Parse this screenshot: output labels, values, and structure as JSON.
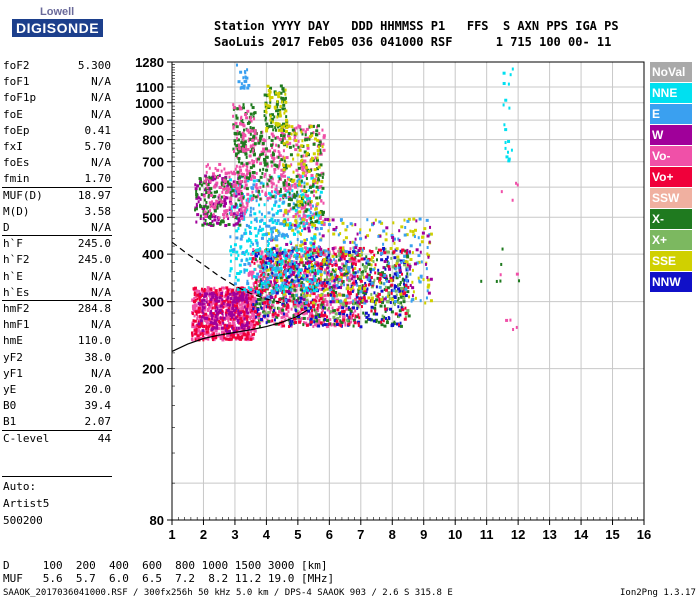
{
  "logo": {
    "top": "Lowell",
    "main": "DIGISONDE"
  },
  "header": {
    "line1": "Station YYYY DAY   DDD HHMMSS P1   FFS  S AXN PPS IGA PS",
    "line2": "SaoLuis 2017 Feb05 036 041000 RSF      1 715 100 00- 11"
  },
  "params": [
    {
      "name": "foF2",
      "value": "5.300"
    },
    {
      "name": "foF1",
      "value": "N/A"
    },
    {
      "name": "foF1p",
      "value": "N/A"
    },
    {
      "name": "foE",
      "value": "N/A"
    },
    {
      "name": "foEp",
      "value": "0.41"
    },
    {
      "name": "fxI",
      "value": "5.70"
    },
    {
      "name": "foEs",
      "value": "N/A"
    },
    {
      "name": "fmin",
      "value": "1.70"
    },
    {
      "name": "MUF(D)",
      "value": "18.97"
    },
    {
      "name": "M(D)",
      "value": "3.58"
    },
    {
      "name": "D",
      "value": "N/A"
    },
    {
      "name": "h`F",
      "value": "245.0"
    },
    {
      "name": "h`F2",
      "value": "245.0"
    },
    {
      "name": "h`E",
      "value": "N/A"
    },
    {
      "name": "h`Es",
      "value": "N/A"
    },
    {
      "name": "hmF2",
      "value": "284.8"
    },
    {
      "name": "hmF1",
      "value": "N/A"
    },
    {
      "name": "hmE",
      "value": "110.0"
    },
    {
      "name": "yF2",
      "value": "38.0"
    },
    {
      "name": "yF1",
      "value": "N/A"
    },
    {
      "name": "yE",
      "value": "20.0"
    },
    {
      "name": "B0",
      "value": "39.4"
    },
    {
      "name": "B1",
      "value": "2.07"
    },
    {
      "name": "C-level",
      "value": "44"
    }
  ],
  "notes": [
    "Auto:",
    "Artist5",
    "500200"
  ],
  "legend": [
    {
      "label": "NoVal",
      "color": "#a9a9a9"
    },
    {
      "label": "NNE",
      "color": "#00e0f0"
    },
    {
      "label": "E",
      "color": "#3aa0f0"
    },
    {
      "label": "W",
      "color": "#a0009a"
    },
    {
      "label": "Vo-",
      "color": "#f050a8"
    },
    {
      "label": "Vo+",
      "color": "#f0003a"
    },
    {
      "label": "SSW",
      "color": "#f0b0a0"
    },
    {
      "label": "X-",
      "color": "#1f7a1f"
    },
    {
      "label": "X+",
      "color": "#7cb860"
    },
    {
      "label": "SSE",
      "color": "#d0d000"
    },
    {
      "label": "NNW",
      "color": "#1010c8"
    }
  ],
  "footer": {
    "d_row": "D     100  200  400  600  800 1000 1500 3000 [km]",
    "muf_row": "MUF   5.6  5.7  6.0  6.5  7.2  8.2 11.2 19.0 [MHz]",
    "info": "SAAOK_2017036041000.RSF / 300fx256h 50 kHz 5.0 km / DPS-4 SAAOK 903 / 2.6 S 315.8 E",
    "version": "Ion2Png 1.3.17"
  },
  "chart_data": {
    "type": "scatter",
    "x_ticks": [
      "1",
      "2",
      "3",
      "4",
      "5",
      "6",
      "7",
      "8",
      "9",
      "10",
      "11",
      "12",
      "13",
      "14",
      "15",
      "16"
    ],
    "y_ticks": [
      "80",
      "200",
      "300",
      "400",
      "500",
      "600",
      "700",
      "800",
      "900",
      "1000",
      "1100",
      "1280"
    ],
    "xlim": [
      1,
      16
    ],
    "y_scale": "log",
    "ylim": [
      80,
      1280
    ],
    "grid": true,
    "legend_position": "right",
    "clusters": [
      {
        "x": [
          1.6,
          3.6
        ],
        "y": [
          240,
          330
        ],
        "n": 520,
        "color": "#f050a8"
      },
      {
        "x": [
          1.6,
          3.6
        ],
        "y": [
          240,
          330
        ],
        "n": 240,
        "color": "#f0003a"
      },
      {
        "x": [
          1.8,
          3.4
        ],
        "y": [
          250,
          320
        ],
        "n": 150,
        "color": "#a0009a"
      },
      {
        "x": [
          3.4,
          6.8
        ],
        "y": [
          260,
          420
        ],
        "n": 520,
        "color": "#f050a8"
      },
      {
        "x": [
          3.6,
          8.5
        ],
        "y": [
          260,
          420
        ],
        "n": 320,
        "color": "#1f7a1f"
      },
      {
        "x": [
          3.6,
          8.5
        ],
        "y": [
          270,
          420
        ],
        "n": 220,
        "color": "#7cb860"
      },
      {
        "x": [
          3.5,
          8.5
        ],
        "y": [
          260,
          420
        ],
        "n": 260,
        "color": "#1010c8"
      },
      {
        "x": [
          3.5,
          8.5
        ],
        "y": [
          260,
          420
        ],
        "n": 280,
        "color": "#f0003a"
      },
      {
        "x": [
          4.0,
          9.2
        ],
        "y": [
          300,
          500
        ],
        "n": 170,
        "color": "#d0d000"
      },
      {
        "x": [
          4.0,
          9.2
        ],
        "y": [
          300,
          500
        ],
        "n": 160,
        "color": "#3aa0f0"
      },
      {
        "x": [
          4.0,
          9.2
        ],
        "y": [
          300,
          500
        ],
        "n": 110,
        "color": "#a0009a"
      },
      {
        "x": [
          2.8,
          5.7
        ],
        "y": [
          320,
          650
        ],
        "n": 280,
        "color": "#00e0f0"
      },
      {
        "x": [
          2.8,
          5.7
        ],
        "y": [
          320,
          650
        ],
        "n": 160,
        "color": "#3aa0f0"
      },
      {
        "x": [
          1.7,
          3.2
        ],
        "y": [
          480,
          650
        ],
        "n": 110,
        "color": "#a0009a"
      },
      {
        "x": [
          1.7,
          3.2
        ],
        "y": [
          480,
          650
        ],
        "n": 100,
        "color": "#1f7a1f"
      },
      {
        "x": [
          2.0,
          3.4
        ],
        "y": [
          500,
          700
        ],
        "n": 110,
        "color": "#f050a8"
      },
      {
        "x": [
          3.0,
          4.6
        ],
        "y": [
          560,
          860
        ],
        "n": 150,
        "color": "#f050a8"
      },
      {
        "x": [
          3.0,
          4.6
        ],
        "y": [
          560,
          860
        ],
        "n": 110,
        "color": "#1f7a1f"
      },
      {
        "x": [
          4.5,
          5.8
        ],
        "y": [
          480,
          880
        ],
        "n": 160,
        "color": "#f050a8"
      },
      {
        "x": [
          4.5,
          5.8
        ],
        "y": [
          480,
          880
        ],
        "n": 110,
        "color": "#1f7a1f"
      },
      {
        "x": [
          4.5,
          5.8
        ],
        "y": [
          480,
          880
        ],
        "n": 90,
        "color": "#d0d000"
      },
      {
        "x": [
          2.9,
          3.6
        ],
        "y": [
          750,
          1000
        ],
        "n": 60,
        "color": "#1f7a1f"
      },
      {
        "x": [
          2.9,
          3.6
        ],
        "y": [
          750,
          1000
        ],
        "n": 50,
        "color": "#f050a8"
      },
      {
        "x": [
          3.9,
          4.6
        ],
        "y": [
          850,
          1120
        ],
        "n": 60,
        "color": "#1f7a1f"
      },
      {
        "x": [
          3.9,
          4.6
        ],
        "y": [
          850,
          1120
        ],
        "n": 50,
        "color": "#d0d000"
      },
      {
        "x": [
          3.0,
          3.4
        ],
        "y": [
          1100,
          1270
        ],
        "n": 20,
        "color": "#3aa0f0"
      },
      {
        "x": [
          11.5,
          11.8
        ],
        "y": [
          700,
          1280
        ],
        "n": 18,
        "color": "#00e0f0"
      },
      {
        "x": [
          11.4,
          12.0
        ],
        "y": [
          240,
          640
        ],
        "n": 10,
        "color": "#f050a8"
      },
      {
        "x": [
          10,
          12
        ],
        "y": [
          330,
          480
        ],
        "n": 6,
        "color": "#1f7a1f"
      }
    ],
    "curves": [
      {
        "name": "profile-solid",
        "style": "solid",
        "x": [
          1.0,
          1.5,
          2.0,
          2.5,
          3.0,
          3.5,
          4.0,
          4.5,
          5.0,
          5.3
        ],
        "y": [
          222,
          232,
          240,
          245,
          249,
          253,
          258,
          265,
          275,
          285
        ]
      },
      {
        "name": "profile-dashed",
        "style": "dashed",
        "x": [
          1.0,
          1.5,
          2.0,
          2.5,
          3.0,
          3.5,
          4.0,
          4.5
        ],
        "y": [
          430,
          400,
          375,
          350,
          330,
          315,
          305,
          298
        ]
      }
    ]
  }
}
